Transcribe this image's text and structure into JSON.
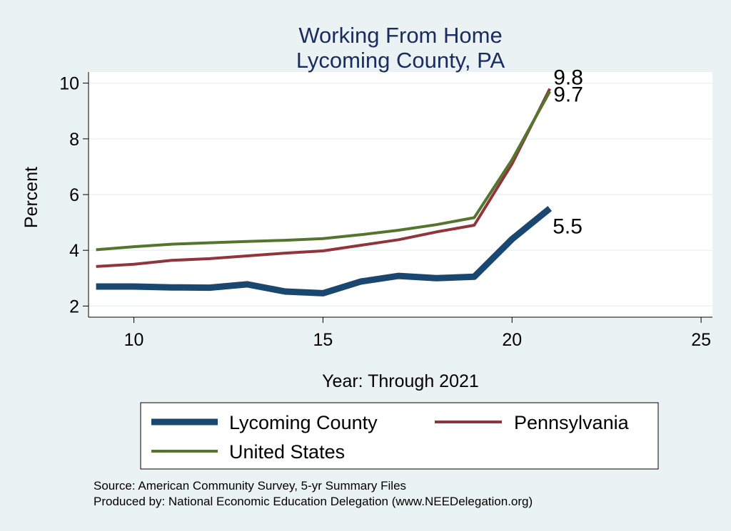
{
  "chart_data": {
    "type": "line",
    "title": [
      "Working From Home",
      "Lycoming County, PA"
    ],
    "xlabel": "Year: Through 2021",
    "ylabel": "Percent",
    "xlim": [
      8.8,
      25.3
    ],
    "ylim": [
      1.6,
      10.4
    ],
    "xticks": [
      10,
      15,
      20,
      25
    ],
    "yticks": [
      2,
      4,
      6,
      8,
      10
    ],
    "grid": "horizontal",
    "legend_position": "bottom",
    "series": [
      {
        "name": "Lycoming County",
        "color": "#1a476f",
        "x": [
          9,
          10,
          11,
          12,
          13,
          14,
          15,
          16,
          17,
          18,
          19,
          20,
          21
        ],
        "y": [
          2.7,
          2.7,
          2.67,
          2.66,
          2.78,
          2.52,
          2.46,
          2.88,
          3.08,
          3.0,
          3.05,
          4.4,
          5.5
        ],
        "end_label": "5.5"
      },
      {
        "name": "Pennsylvania",
        "color": "#90353b",
        "x": [
          9,
          10,
          11,
          12,
          13,
          14,
          15,
          16,
          17,
          18,
          19,
          20,
          21
        ],
        "y": [
          3.42,
          3.5,
          3.64,
          3.7,
          3.8,
          3.9,
          3.98,
          4.18,
          4.38,
          4.66,
          4.9,
          7.1,
          9.8
        ],
        "end_label": "9.8"
      },
      {
        "name": "United States",
        "color": "#55752f",
        "x": [
          9,
          10,
          11,
          12,
          13,
          14,
          15,
          16,
          17,
          18,
          19,
          20,
          21
        ],
        "y": [
          4.02,
          4.13,
          4.22,
          4.27,
          4.32,
          4.36,
          4.42,
          4.56,
          4.72,
          4.92,
          5.17,
          7.25,
          9.7
        ],
        "end_label": "9.7"
      }
    ]
  },
  "notes": {
    "source": "Source: American Community Survey, 5-yr Summary Files",
    "produced": "Produced by: National Economic Education Delegation (www.NEEDelegation.org)"
  }
}
